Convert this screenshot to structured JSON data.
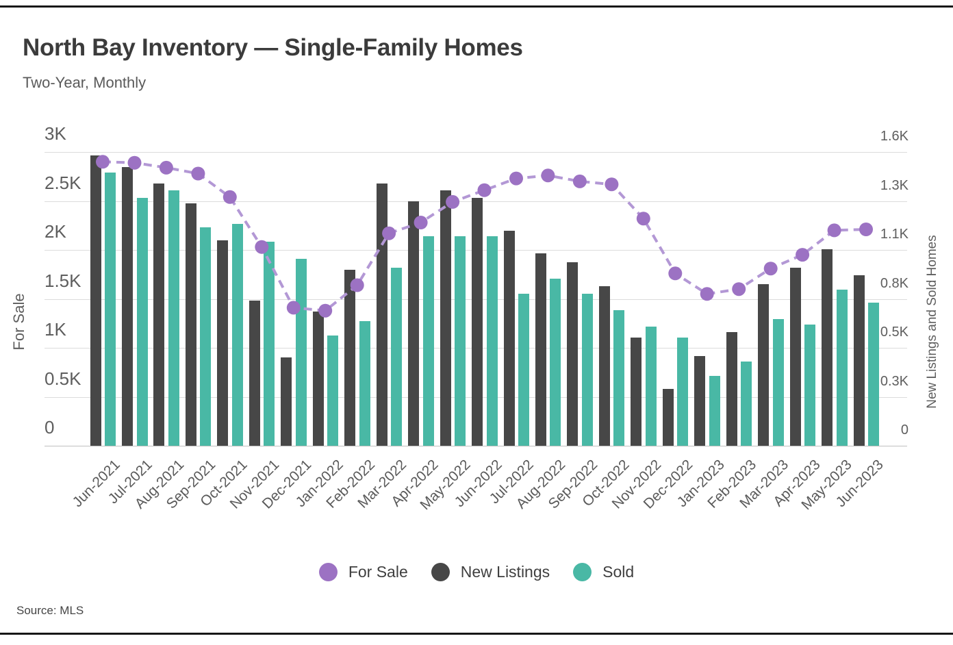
{
  "page": {
    "title": "North Bay Inventory — Single-Family Homes",
    "subtitle": "Two-Year, Monthly",
    "source": "Source: MLS"
  },
  "colors": {
    "for_sale_point": "#9c72c3",
    "for_sale_line": "#b398d5",
    "new_listings": "#474747",
    "sold": "#49b8a5",
    "grid": "#dcdcdc",
    "baseline": "#bfbfbf",
    "text_dark": "#3b3b3b",
    "text_mid": "#5a5a5a"
  },
  "legend": {
    "items": [
      {
        "label": "For Sale",
        "color": "#9c72c3"
      },
      {
        "label": "New Listings",
        "color": "#474747"
      },
      {
        "label": "Sold",
        "color": "#49b8a5"
      }
    ]
  },
  "chart_data": {
    "type": "combo: line + grouped bars",
    "categories": [
      "Jun-2021",
      "Jul-2021",
      "Aug-2021",
      "Sep-2021",
      "Oct-2021",
      "Nov-2021",
      "Dec-2021",
      "Jan-2022",
      "Feb-2022",
      "Mar-2022",
      "Apr-2022",
      "May-2022",
      "Jun-2022",
      "Jul-2022",
      "Aug-2022",
      "Sep-2022",
      "Oct-2022",
      "Nov-2022",
      "Dec-2022",
      "Jan-2023",
      "Feb-2023",
      "Mar-2023",
      "Apr-2023",
      "May-2023",
      "Jun-2023"
    ],
    "series": [
      {
        "name": "For Sale",
        "type": "line",
        "axis": "left",
        "style": "dashed line with round markers",
        "values": [
          2900,
          2890,
          2840,
          2780,
          2540,
          2030,
          1410,
          1380,
          1640,
          2170,
          2280,
          2490,
          2610,
          2730,
          2760,
          2700,
          2670,
          2320,
          1760,
          1550,
          1600,
          1810,
          1950,
          2200,
          2210
        ]
      },
      {
        "name": "New Listings",
        "type": "bar",
        "axis": "right",
        "values": [
          1580,
          1520,
          1430,
          1320,
          1120,
          790,
          480,
          730,
          960,
          1430,
          1330,
          1390,
          1350,
          1170,
          1050,
          1000,
          870,
          590,
          310,
          490,
          620,
          880,
          970,
          1070,
          930
        ]
      },
      {
        "name": "Sold",
        "type": "bar",
        "axis": "right",
        "values": [
          1490,
          1350,
          1390,
          1190,
          1210,
          1110,
          1020,
          600,
          680,
          970,
          1140,
          1140,
          1140,
          830,
          910,
          830,
          740,
          650,
          590,
          380,
          460,
          690,
          660,
          850,
          780
        ]
      }
    ],
    "left_axis": {
      "title": "For Sale",
      "tick_labels": [
        "0",
        "0.5K",
        "1K",
        "1.5K",
        "2K",
        "2.5K",
        "3K"
      ],
      "tick_values": [
        0,
        500,
        1000,
        1500,
        2000,
        2500,
        3000
      ],
      "range": [
        0,
        3000
      ]
    },
    "right_axis": {
      "title": "New Listings and Sold Homes",
      "tick_labels": [
        "0",
        "0.3K",
        "0.5K",
        "0.8K",
        "1.1K",
        "1.3K",
        "1.6K"
      ],
      "tick_values": [
        0,
        267,
        533,
        800,
        1067,
        1333,
        1600
      ],
      "range": [
        0,
        1600
      ]
    },
    "grid": true,
    "legend_position": "bottom"
  }
}
